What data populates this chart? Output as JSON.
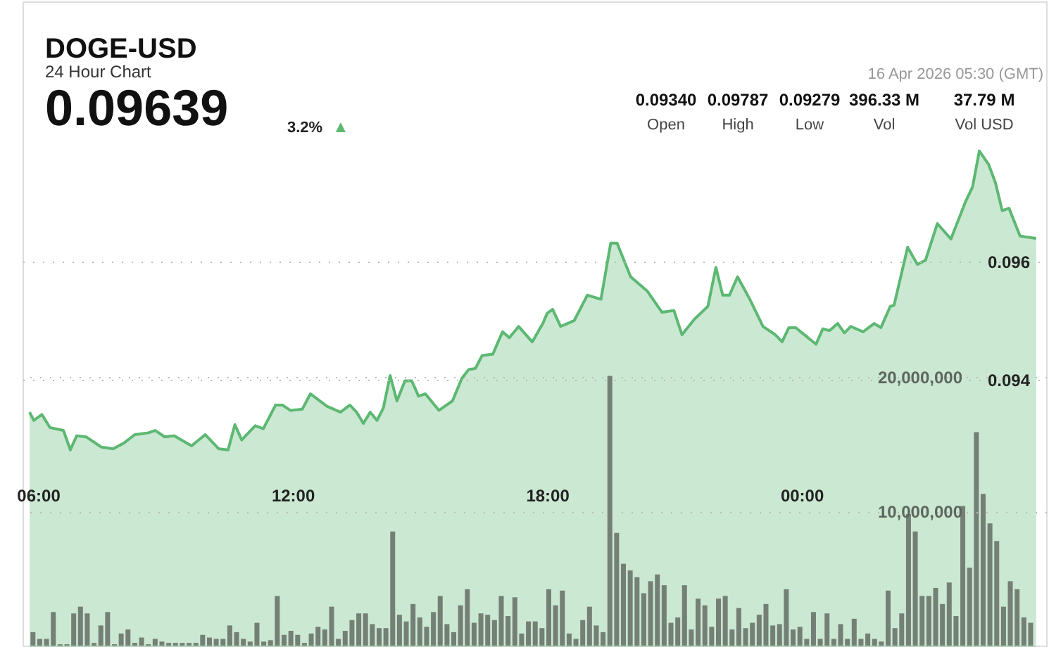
{
  "chart_data": {
    "type": "area",
    "title": "DOGE-USD",
    "subtitle": "24 Hour Chart",
    "annotations": [
      "0.09639",
      "3.2%",
      "▲",
      "16 Apr 2026 05:30 (GMT)",
      "0.09340",
      "Open",
      "0.09787",
      "High",
      "0.09279",
      "Low",
      "396.33 M",
      "Vol",
      "37.79 M",
      "Vol USD"
    ],
    "series": [
      {
        "type": "bar",
        "axis": "y2",
        "color": "#6f7a70",
        "x": [
          5.88,
          6.04,
          6.2,
          6.36,
          6.52,
          6.68,
          6.84,
          7,
          7.16,
          7.32,
          7.48,
          7.64,
          7.8,
          7.96,
          8.12,
          8.28,
          8.44,
          8.6,
          8.76,
          8.92,
          9.08,
          9.24,
          9.4,
          9.56,
          9.72,
          9.88,
          10.04,
          10.2,
          10.36,
          10.52,
          10.68,
          10.84,
          11,
          11.16,
          11.32,
          11.48,
          11.64,
          11.8,
          11.96,
          12.12,
          12.28,
          12.44,
          12.6,
          12.76,
          12.92,
          13.08,
          13.24,
          13.4,
          13.56,
          13.72,
          13.88,
          14.04,
          14.2,
          14.36,
          14.52,
          14.68,
          14.84,
          15,
          15.16,
          15.32,
          15.48,
          15.64,
          15.8,
          15.96,
          16.12,
          16.28,
          16.44,
          16.6,
          16.76,
          16.92,
          17.08,
          17.24,
          17.4,
          17.56,
          17.72,
          17.88,
          18.04,
          18.2,
          18.36,
          18.52,
          18.68,
          18.84,
          19,
          19.16,
          19.32,
          19.48,
          19.64,
          19.8,
          19.96,
          20.12,
          20.28,
          20.44,
          20.6,
          20.76,
          20.92,
          21.08,
          21.24,
          21.4,
          21.56,
          21.72,
          21.88,
          22.04,
          22.2,
          22.36,
          22.52,
          22.68,
          22.84,
          23,
          23.16,
          23.32,
          23.48,
          23.64,
          23.8,
          23.96,
          24.12,
          24.28,
          24.44,
          24.6,
          24.76,
          24.92,
          25.08,
          25.24,
          25.4,
          25.56,
          25.72,
          25.88,
          26.04,
          26.2,
          26.36,
          26.52,
          26.68,
          26.84,
          27,
          27.16,
          27.32,
          27.48,
          27.64,
          27.8,
          27.96,
          28.12,
          28.28,
          28.44,
          28.6,
          28.76,
          28.92,
          29.08,
          29.24,
          29.4
        ],
        "values": [
          1000000.0,
          500000.0,
          500000.0,
          2500000.0,
          100000.0,
          100000.0,
          2400000.0,
          2900000.0,
          2400000.0,
          200000.0,
          1500000.0,
          2500000.0,
          100000.0,
          900000.0,
          1200000.0,
          200000.0,
          600000.0,
          100000.0,
          500000.0,
          300000.0,
          200000.0,
          200000.0,
          200000.0,
          200000.0,
          200000.0,
          800000.0,
          600000.0,
          500000.0,
          500000.0,
          1500000.0,
          1000000.0,
          500000.0,
          300000.0,
          1700000.0,
          300000.0,
          400000.0,
          3700000.0,
          800000.0,
          1100000.0,
          800000.0,
          200000.0,
          900000.0,
          1400000.0,
          1200000.0,
          2900000.0,
          500000.0,
          1100000.0,
          1900000.0,
          2400000.0,
          2400000.0,
          1600000.0,
          1300000.0,
          1300000.0,
          8500000.0,
          2300000.0,
          1800000.0,
          3100000.0,
          2100000.0,
          1400000.0,
          2500000.0,
          3700000.0,
          1600000.0,
          1000000.0,
          3000000.0,
          4200000.0,
          1700000.0,
          2400000.0,
          2300000.0,
          1900000.0,
          3700000.0,
          2200000.0,
          3600000.0,
          900000.0,
          1800000.0,
          1800000.0,
          1300000.0,
          4200000.0,
          3000000.0,
          4100000.0,
          900000.0,
          500000.0,
          1900000.0,
          2900000.0,
          1500000.0,
          1000000.0,
          20100000.0,
          8400000.0,
          6100000.0,
          5600000.0,
          5100000.0,
          3900000.0,
          4800000.0,
          5300000.0,
          4500000.0,
          1700000.0,
          2100000.0,
          4500000.0,
          1200000.0,
          3500000.0,
          3000000.0,
          1400000.0,
          3500000.0,
          3700000.0,
          1200000.0,
          2800000.0,
          1300000.0,
          1700000.0,
          2300000.0,
          3100000.0,
          1500000.0,
          1600000.0,
          4200000.0,
          1200000.0,
          1400000.0,
          500000.0,
          2500000.0,
          500000.0,
          2400000.0,
          500000.0,
          1600000.0,
          500000.0,
          2000000.0,
          500000.0,
          900000.0,
          500000.0,
          300000.0,
          4100000.0,
          1300000.0,
          2400000.0,
          9800000.0,
          8500000.0,
          3700000.0,
          3700000.0,
          4300000.0,
          3100000.0,
          4700000.0,
          2200000.0,
          10400000.0,
          5800000.0,
          15900000.0,
          11300000.0,
          9100000.0,
          7800000.0,
          2900000.0,
          4800000.0,
          4200000.0,
          2100000.0,
          1700000.0
        ]
      },
      {
        "color": "#5cb872",
        "x": [
          5.8,
          5.9,
          6.09,
          6.28,
          6.6,
          6.76,
          6.91,
          7.14,
          7.49,
          7.77,
          8.03,
          8.28,
          8.6,
          8.76,
          8.99,
          9.21,
          9.62,
          9.94,
          10.26,
          10.48,
          10.64,
          10.8,
          11.12,
          11.31,
          11.6,
          11.76,
          11.95,
          12.23,
          12.42,
          12.81,
          13.13,
          13.35,
          13.51,
          13.67,
          13.83,
          13.99,
          14.14,
          14.3,
          14.46,
          14.65,
          14.81,
          14.97,
          15.13,
          15.45,
          15.77,
          15.99,
          16.15,
          16.31,
          16.47,
          16.72,
          16.95,
          17.11,
          17.33,
          17.65,
          17.9,
          18.0,
          18.13,
          18.32,
          18.64,
          18.95,
          19.27,
          19.5,
          19.65,
          19.97,
          20.36,
          20.71,
          20.99,
          21.18,
          21.47,
          21.79,
          21.98,
          22.14,
          22.3,
          22.49,
          22.78,
          23.09,
          23.38,
          23.54,
          23.7,
          23.86,
          24.34,
          24.5,
          24.66,
          24.85,
          25.01,
          25.16,
          25.45,
          25.71,
          25.87,
          26.09,
          26.18,
          26.5,
          26.73,
          26.92,
          27.2,
          27.52,
          27.87,
          28.03,
          28.19,
          28.41,
          28.57,
          28.73,
          28.89,
          29.15,
          29.53
        ],
        "values": [
          0.09345,
          0.09331,
          0.09341,
          0.09319,
          0.09314,
          0.09281,
          0.09305,
          0.09303,
          0.09286,
          0.09283,
          0.09293,
          0.09307,
          0.0931,
          0.09314,
          0.09303,
          0.09305,
          0.09288,
          0.09307,
          0.09283,
          0.09281,
          0.09324,
          0.09298,
          0.09322,
          0.09317,
          0.09357,
          0.09357,
          0.09348,
          0.0935,
          0.09376,
          0.09355,
          0.09345,
          0.09357,
          0.09345,
          0.09326,
          0.09345,
          0.09331,
          0.09352,
          0.09407,
          0.09364,
          0.09398,
          0.09398,
          0.09372,
          0.09376,
          0.09348,
          0.09364,
          0.09402,
          0.09417,
          0.09419,
          0.09441,
          0.09443,
          0.09481,
          0.09471,
          0.0949,
          0.09464,
          0.09495,
          0.09512,
          0.09519,
          0.0949,
          0.095,
          0.09543,
          0.09536,
          0.09631,
          0.09631,
          0.09574,
          0.0955,
          0.09514,
          0.09517,
          0.09476,
          0.09502,
          0.09524,
          0.0959,
          0.09543,
          0.09543,
          0.09574,
          0.09536,
          0.0949,
          0.09476,
          0.09464,
          0.09488,
          0.09488,
          0.0946,
          0.09486,
          0.09483,
          0.09495,
          0.09479,
          0.0949,
          0.09481,
          0.09495,
          0.09488,
          0.09524,
          0.09526,
          0.09624,
          0.09595,
          0.09602,
          0.09664,
          0.09638,
          0.09702,
          0.09726,
          0.09787,
          0.09764,
          0.09733,
          0.09686,
          0.0969,
          0.09643,
          0.09639
        ]
      }
    ],
    "xlim": [
      5.8,
      29.6
    ],
    "xticks": [
      {
        "value": 6,
        "label": "06:00"
      },
      {
        "value": 12,
        "label": "12:00"
      },
      {
        "value": 18,
        "label": "18:00"
      },
      {
        "value": 24,
        "label": "00:00"
      }
    ],
    "ylim": [
      0.0895,
      0.1004
    ],
    "yticks": [
      {
        "value": 0.094,
        "label": "0.094"
      },
      {
        "value": 0.096,
        "label": "0.096"
      }
    ],
    "y2lim": [
      0,
      48000000
    ],
    "y2ticks": [
      {
        "value": 10000000,
        "label": "10,000,000"
      },
      {
        "value": 20000000,
        "label": "20,000,000"
      }
    ],
    "grid": "y"
  }
}
